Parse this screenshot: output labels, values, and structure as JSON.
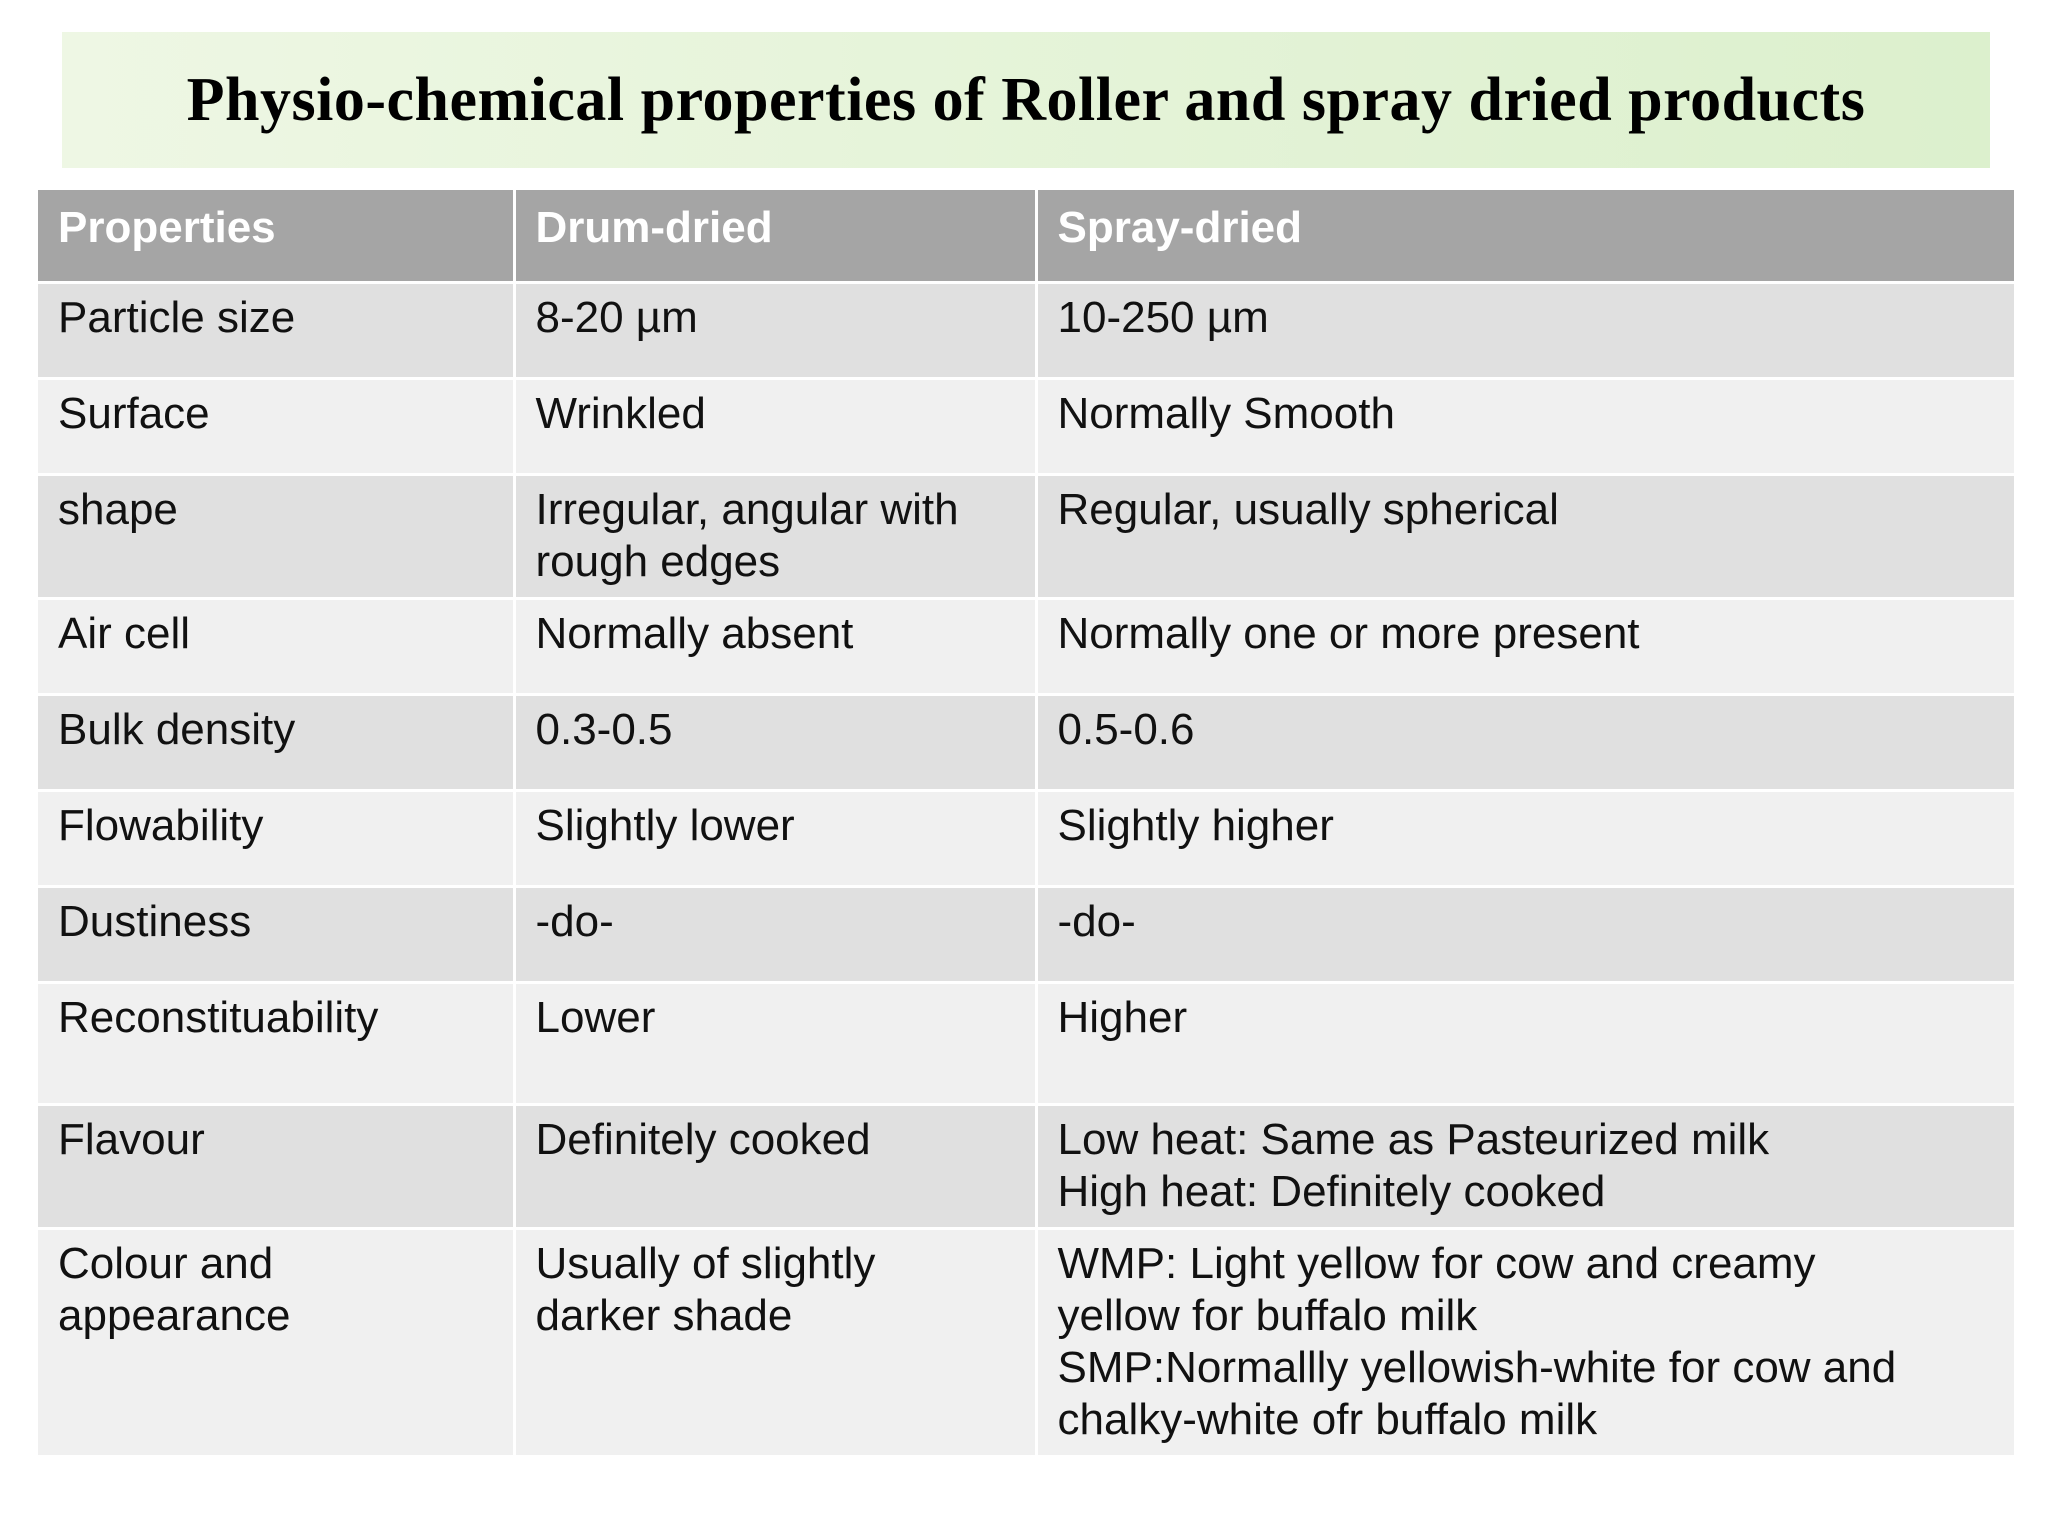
{
  "title": "Physio-chemical properties of Roller and spray dried products",
  "table": {
    "headers": [
      "Properties",
      "Drum-dried",
      "Spray-dried"
    ],
    "rows": [
      {
        "property": "Particle size",
        "drum": [
          "8-20 µm"
        ],
        "spray": [
          "10-250 µm"
        ]
      },
      {
        "property": "Surface",
        "drum": [
          "Wrinkled"
        ],
        "spray": [
          "Normally Smooth"
        ]
      },
      {
        "property": "shape",
        "drum": [
          "Irregular, angular with",
          "rough edges"
        ],
        "spray": [
          "Regular, usually spherical"
        ]
      },
      {
        "property": "Air cell",
        "drum": [
          "Normally absent"
        ],
        "spray": [
          "Normally one or more present"
        ]
      },
      {
        "property": "Bulk density",
        "drum": [
          "0.3-0.5"
        ],
        "spray": [
          "0.5-0.6"
        ]
      },
      {
        "property": "Flowability",
        "drum": [
          "Slightly lower"
        ],
        "spray": [
          "Slightly higher"
        ]
      },
      {
        "property": "Dustiness",
        "drum": [
          "-do-"
        ],
        "spray": [
          "-do-"
        ]
      },
      {
        "property": "Reconstituability",
        "drum": [
          "Lower"
        ],
        "spray": [
          "Higher"
        ]
      },
      {
        "property": "Flavour",
        "drum": [
          "Definitely cooked"
        ],
        "spray": [
          "Low heat: Same as Pasteurized milk",
          "High heat: Definitely cooked"
        ]
      },
      {
        "property": "Colour and appearance",
        "property_lines": [
          "Colour and",
          "appearance"
        ],
        "drum": [
          "Usually of slightly",
          "darker shade"
        ],
        "spray": [
          "WMP: Light yellow for cow and creamy",
          "yellow for buffalo milk",
          "SMP:Normallly yellowish-white for cow and",
          "chalky-white ofr buffalo milk"
        ]
      }
    ]
  }
}
